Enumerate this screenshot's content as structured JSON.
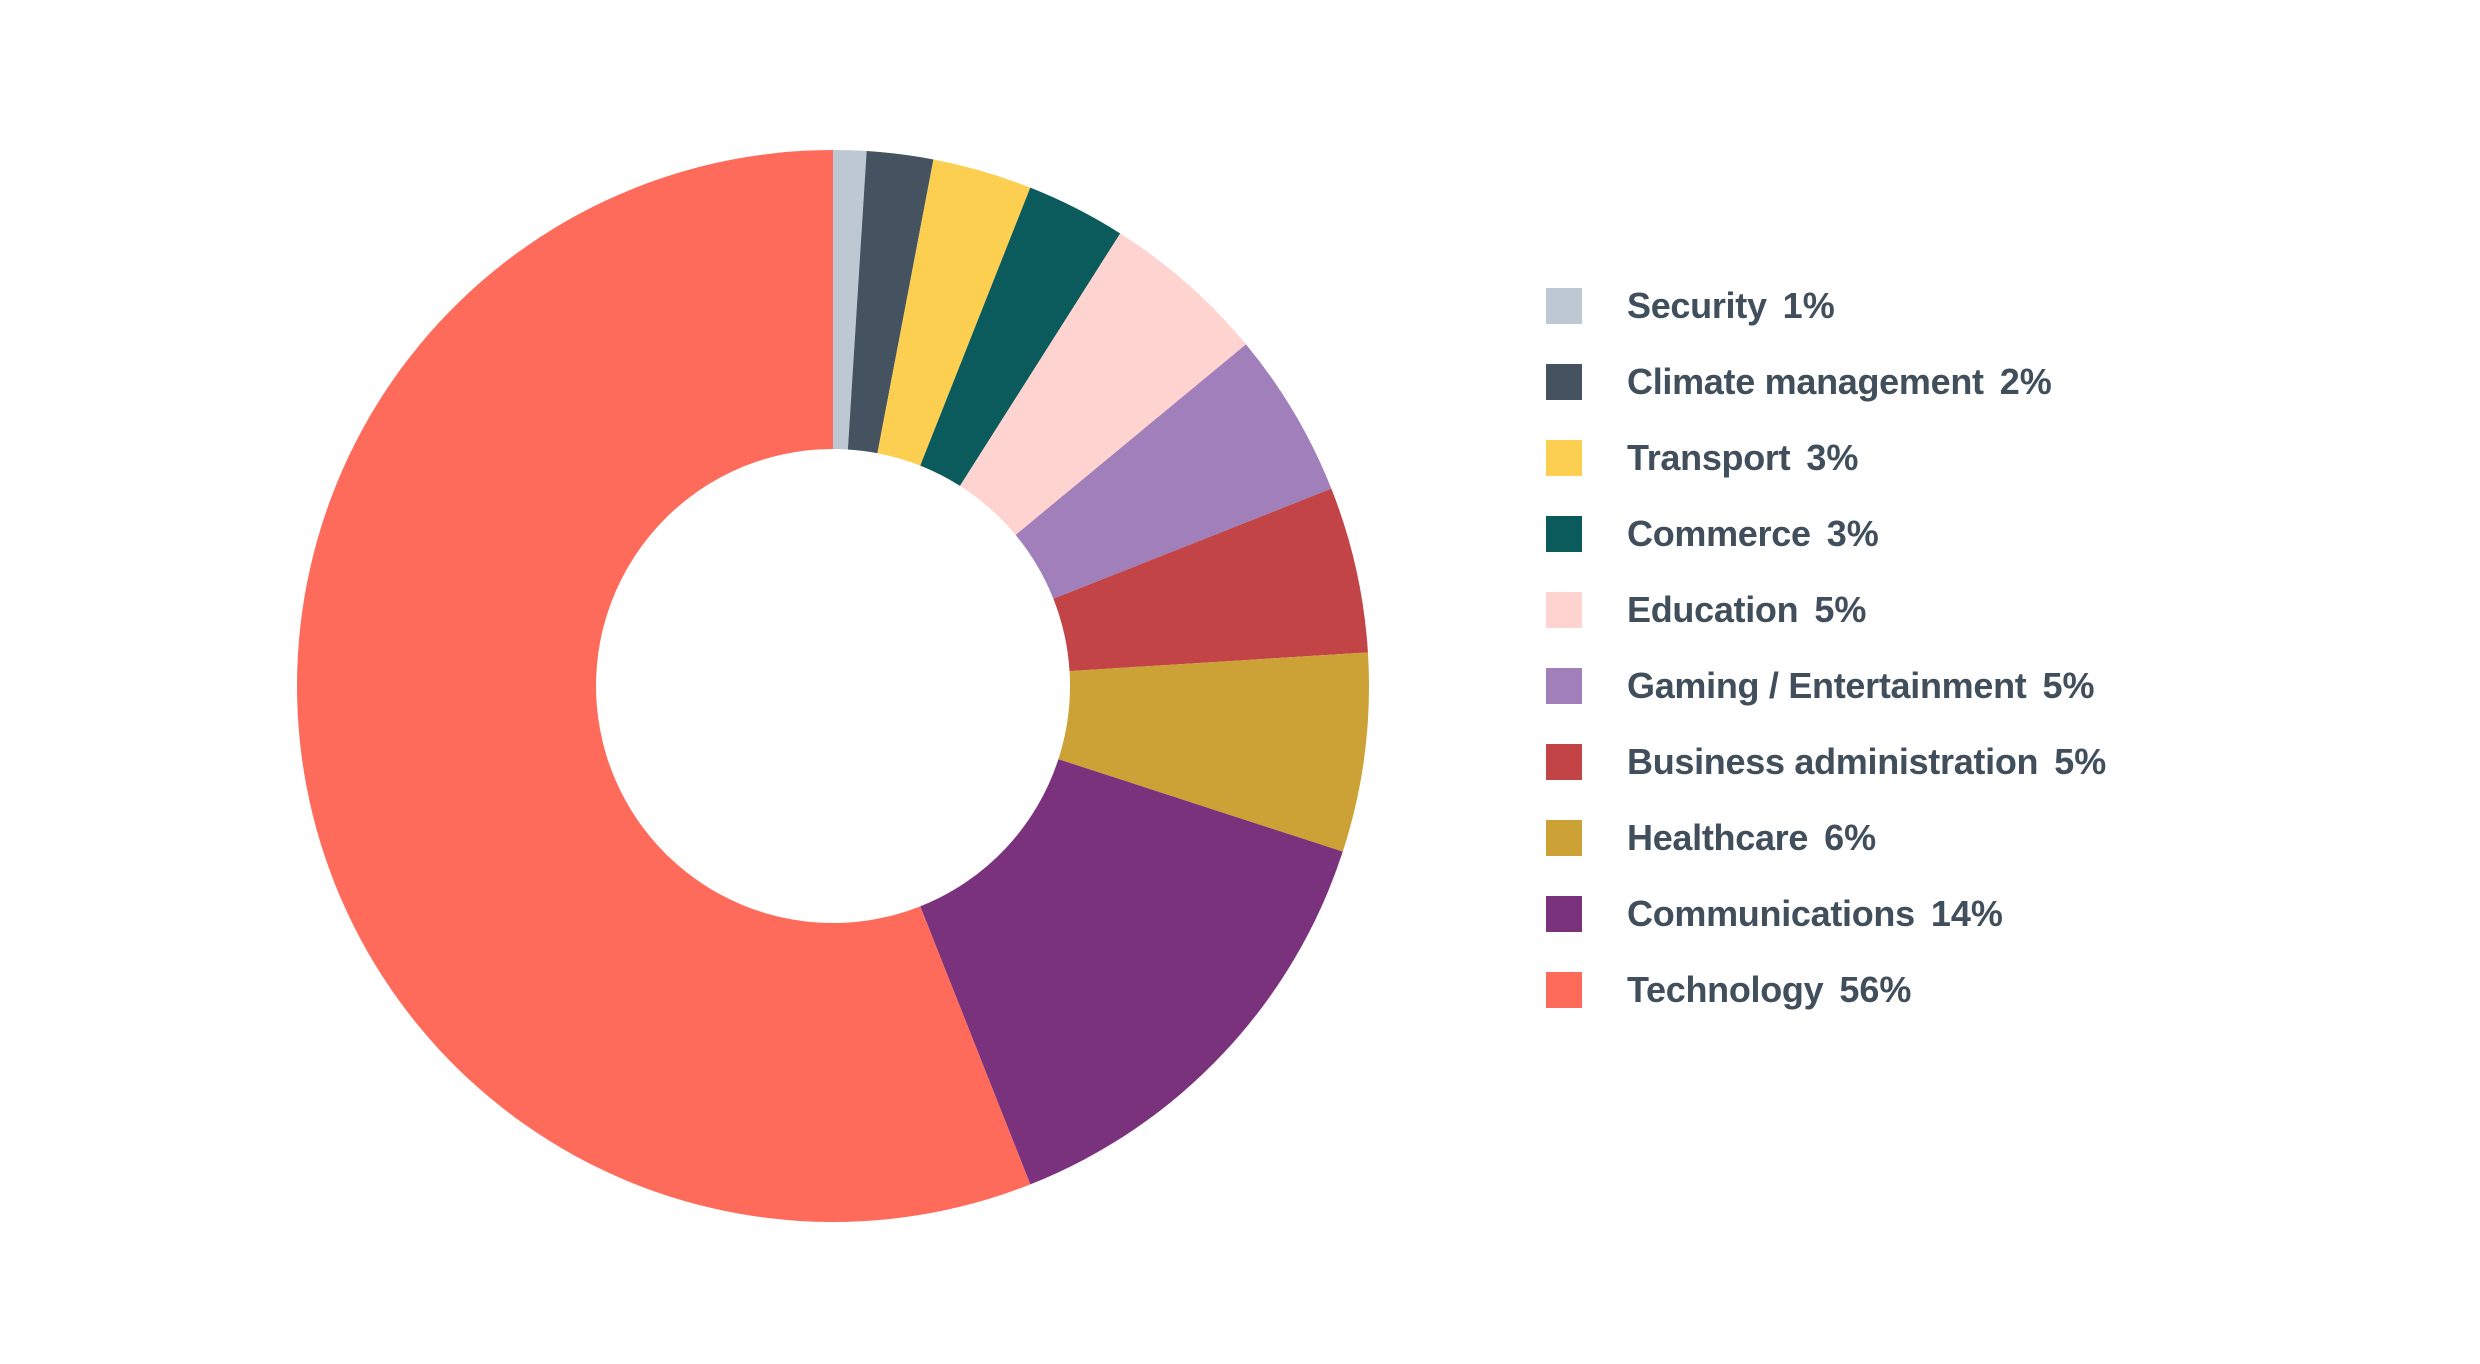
{
  "chart_data": {
    "type": "pie",
    "title": "",
    "donut": true,
    "legend_position": "right",
    "slices": [
      {
        "label": "Security",
        "value": 1,
        "display": "1%",
        "color": "#bdc8d2"
      },
      {
        "label": "Climate management",
        "value": 2,
        "display": "2%",
        "color": "#44535f"
      },
      {
        "label": "Transport",
        "value": 3,
        "display": "3%",
        "color": "#fccf51"
      },
      {
        "label": "Commerce",
        "value": 3,
        "display": "3%",
        "color": "#0b5a5c"
      },
      {
        "label": "Education",
        "value": 5,
        "display": "5%",
        "color": "#ffd3cf"
      },
      {
        "label": "Gaming / Entertainment",
        "value": 5,
        "display": "5%",
        "color": "#a07fba"
      },
      {
        "label": "Business administration",
        "value": 5,
        "display": "5%",
        "color": "#c24446"
      },
      {
        "label": "Healthcare",
        "value": 6,
        "display": "6%",
        "color": "#cca136"
      },
      {
        "label": "Communications",
        "value": 14,
        "display": "14%",
        "color": "#7b327d"
      },
      {
        "label": "Technology",
        "value": 56,
        "display": "56%",
        "color": "#ff6b5a"
      }
    ]
  }
}
